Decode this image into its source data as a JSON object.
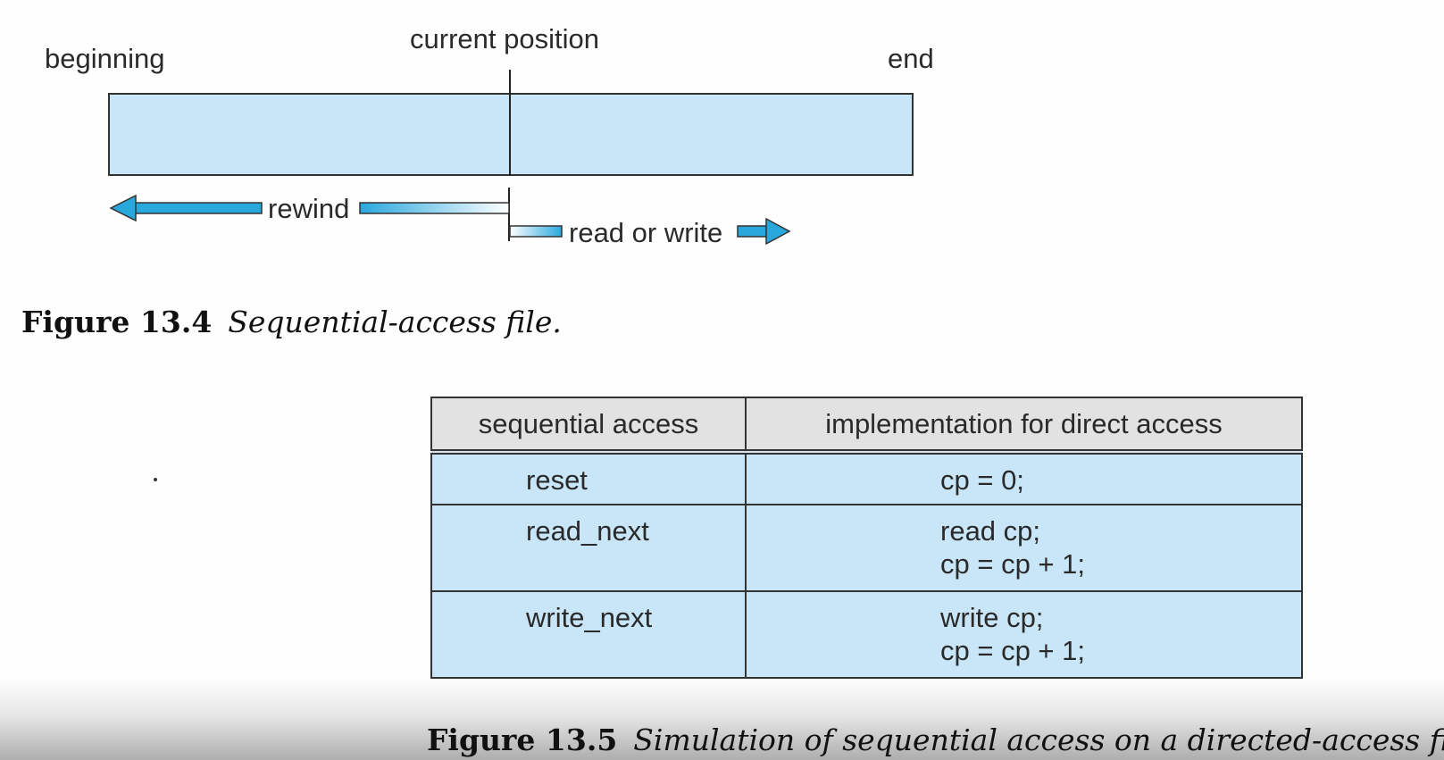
{
  "figure1": {
    "labels": {
      "beginning": "beginning",
      "current_position": "current position",
      "end": "end",
      "rewind": "rewind",
      "read_or_write": "read or write"
    },
    "caption": {
      "number": "Figure 13.4",
      "title": "Sequential-access file."
    },
    "colors": {
      "bar": "#c8e6f7",
      "arrow": "#29a8de"
    }
  },
  "figure2": {
    "headers": [
      "sequential access",
      "implementation for direct access"
    ],
    "rows": [
      {
        "op": "reset",
        "impl": [
          "cp = 0;"
        ]
      },
      {
        "op": "read_next",
        "impl": [
          "read cp;",
          "cp = cp + 1;"
        ]
      },
      {
        "op": "write_next",
        "impl": [
          "write cp;",
          "cp = cp + 1;"
        ]
      }
    ],
    "caption": {
      "number": "Figure 13.5",
      "title": "Simulation of sequential access on a directed-access file."
    },
    "colors": {
      "header": "#e2e2e2",
      "cell": "#c8e6f7"
    }
  }
}
